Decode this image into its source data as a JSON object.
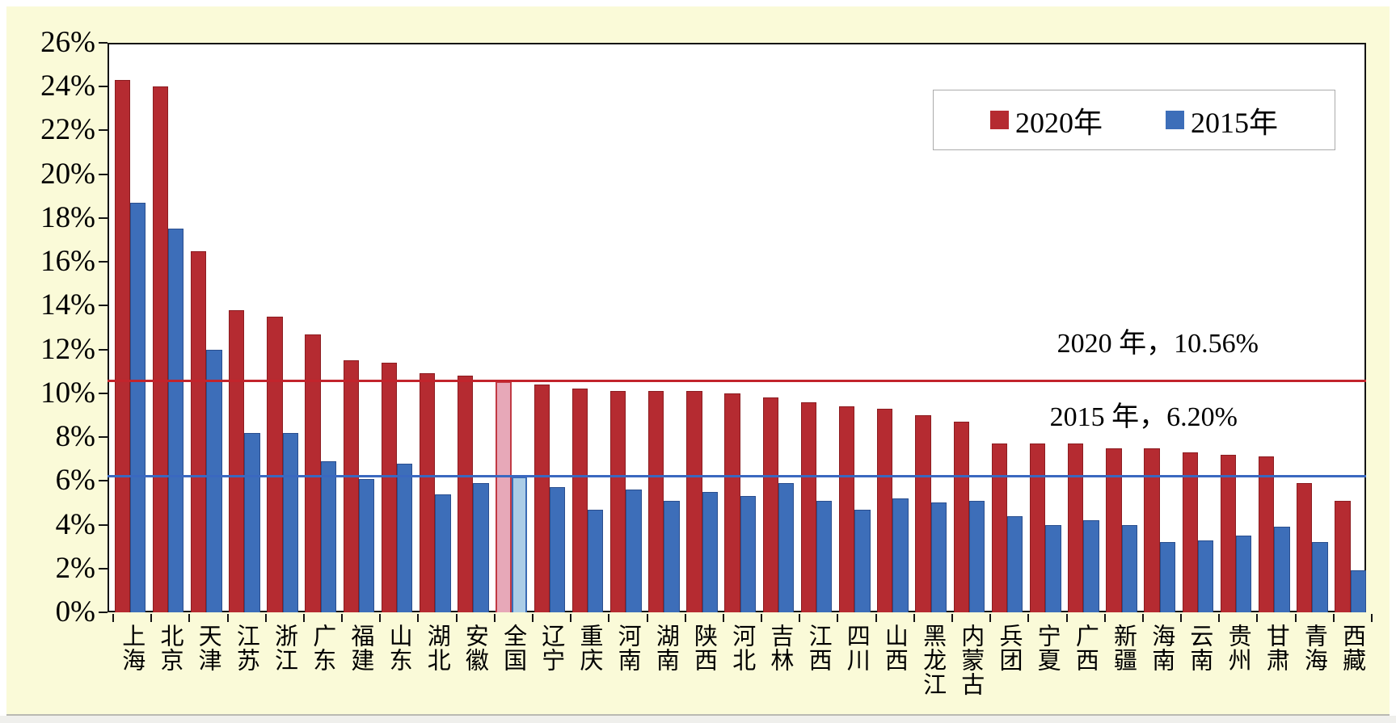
{
  "canvas_background": "#FAFAD8",
  "chart_data": {
    "type": "bar",
    "title": "",
    "xlabel": "",
    "ylabel": "",
    "ylim": [
      0,
      26
    ],
    "ytick_step": 2,
    "grid": false,
    "legend_position": "top-right",
    "y_tick_labels": [
      "0%",
      "2%",
      "4%",
      "6%",
      "8%",
      "10%",
      "12%",
      "14%",
      "16%",
      "18%",
      "20%",
      "22%",
      "24%",
      "26%"
    ],
    "categories": [
      "上海",
      "北京",
      "天津",
      "江苏",
      "浙江",
      "广东",
      "福建",
      "山东",
      "湖北",
      "安徽",
      "全国",
      "辽宁",
      "重庆",
      "河南",
      "湖南",
      "陕西",
      "河北",
      "吉林",
      "江西",
      "四川",
      "山西",
      "黑龙江",
      "内蒙古",
      "兵团",
      "宁夏",
      "广西",
      "新疆",
      "海南",
      "云南",
      "贵州",
      "甘肃",
      "青海",
      "西藏"
    ],
    "series": [
      {
        "name": "2020年",
        "color": "#B52B31",
        "values": [
          24.3,
          24.0,
          16.5,
          13.8,
          13.5,
          12.7,
          11.5,
          11.4,
          10.9,
          10.8,
          10.56,
          10.4,
          10.2,
          10.1,
          10.1,
          10.1,
          10.0,
          9.8,
          9.6,
          9.4,
          9.3,
          9.0,
          8.7,
          7.7,
          7.7,
          7.7,
          7.5,
          7.5,
          7.3,
          7.2,
          7.1,
          5.9,
          5.1
        ]
      },
      {
        "name": "2015年",
        "color": "#3D6EB9",
        "values": [
          18.7,
          17.5,
          12.0,
          8.2,
          8.2,
          6.9,
          6.1,
          6.8,
          5.4,
          5.9,
          6.2,
          5.7,
          4.7,
          5.6,
          5.1,
          5.5,
          5.3,
          5.9,
          5.1,
          4.7,
          5.2,
          5.0,
          5.1,
          4.4,
          4.0,
          4.2,
          4.0,
          3.2,
          3.3,
          3.5,
          3.9,
          3.2,
          1.9
        ]
      }
    ],
    "highlight_category": "全国",
    "highlight_index": 10,
    "highlight_fill_2020": "#E7A8B8",
    "highlight_fill_2015": "#ABCDE7",
    "reference_lines": [
      {
        "label": "2020 年，10.56%",
        "value": 10.56,
        "color": "#C2242C"
      },
      {
        "label": "2015 年，6.20%",
        "value": 6.2,
        "color": "#3A68C0"
      }
    ]
  },
  "legend": {
    "items": [
      {
        "label": "2020年",
        "color": "#B52B31"
      },
      {
        "label": "2015年",
        "color": "#3D6EB9"
      }
    ]
  },
  "annotations": {
    "line2020": "2020 年，10.56%",
    "line2015": "2015 年，6.20%"
  }
}
